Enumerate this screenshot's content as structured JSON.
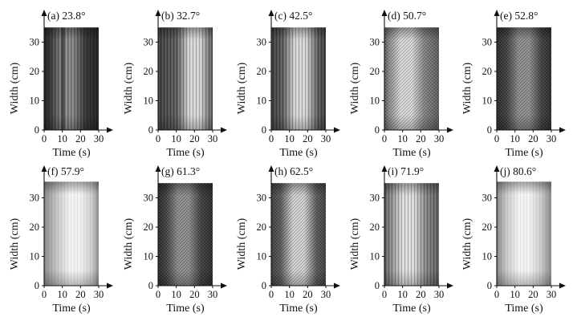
{
  "figure": {
    "x_axis_label": "Time (s)",
    "y_axis_label": "Width (cm)",
    "x_ticks": [
      "0",
      "10",
      "20",
      "30"
    ],
    "y_ticks": [
      "0",
      "10",
      "20",
      "30"
    ]
  },
  "panels": [
    {
      "title": "(a) 23.8°",
      "pattern": "dark-vertical-band",
      "tone": "dark",
      "bright_center_time_s": 13
    },
    {
      "title": "(b) 32.7°",
      "pattern": "streaks",
      "tone": "medium",
      "bright_center_time_s": 20
    },
    {
      "title": "(c) 42.5°",
      "pattern": "streaks",
      "tone": "medium",
      "bright_center_time_s": 16
    },
    {
      "title": "(d) 50.7°",
      "pattern": "crosshatch",
      "tone": "light",
      "bright_center_time_s": 12
    },
    {
      "title": "(e) 52.8°",
      "pattern": "crosshatch",
      "tone": "dark",
      "bright_center_time_s": 15
    },
    {
      "title": "(f) 57.9°",
      "pattern": "smooth",
      "tone": "very-light",
      "bright_center_time_s": 17
    },
    {
      "title": "(g) 61.3°",
      "pattern": "crosshatch",
      "tone": "dark",
      "bright_center_time_s": 14
    },
    {
      "title": "(h) 62.5°",
      "pattern": "crosshatch",
      "tone": "medium",
      "bright_center_time_s": 15
    },
    {
      "title": "(i) 71.9°",
      "pattern": "streaks",
      "tone": "light",
      "bright_center_time_s": 13
    },
    {
      "title": "(j) 80.6°",
      "pattern": "smooth",
      "tone": "very-light",
      "bright_center_time_s": 15
    }
  ],
  "chart_data": {
    "type": "heatmap",
    "title": "",
    "xlabel": "Time (s)",
    "ylabel": "Width (cm)",
    "xlim": [
      0,
      30
    ],
    "ylim": [
      0,
      35
    ],
    "xticks": [
      0,
      10,
      20,
      30
    ],
    "yticks": [
      0,
      10,
      20,
      30
    ],
    "panels": [
      "(a) 23.8°",
      "(b) 32.7°",
      "(c) 42.5°",
      "(d) 50.7°",
      "(e) 52.8°",
      "(f) 57.9°",
      "(g) 61.3°",
      "(h) 62.5°",
      "(i) 71.9°",
      "(j) 80.6°"
    ]
  }
}
